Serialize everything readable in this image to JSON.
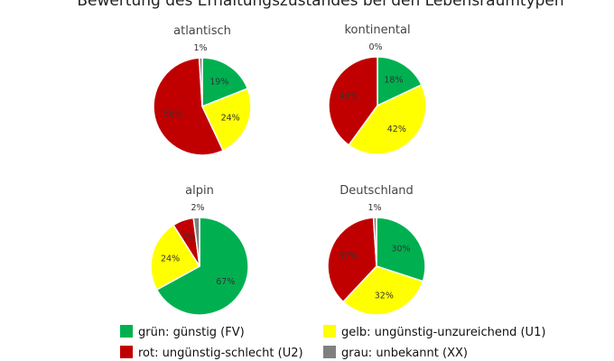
{
  "chart_data": {
    "type": "pie",
    "title": "Bewertung des Erhaltungszustandes bei den Lebensraumtypen",
    "legend": [
      {
        "label": "grün: günstig (FV)",
        "color": "#00b050"
      },
      {
        "label": "gelb: ungünstig-unzureichend (U1)",
        "color": "#ffff00"
      },
      {
        "label": "rot: ungünstig-schlecht (U2)",
        "color": "#c00000"
      },
      {
        "label": "grau: unbekannt (XX)",
        "color": "#808080"
      }
    ],
    "legend_placement": "bottom",
    "charts": [
      {
        "title": "atlantisch",
        "values": [
          19,
          24,
          56,
          1
        ],
        "labels": [
          "19%",
          "24%",
          "56%",
          "1%"
        ]
      },
      {
        "title": "kontinental",
        "values": [
          18,
          42,
          40,
          0
        ],
        "labels": [
          "18%",
          "42%",
          "40%",
          "0%"
        ]
      },
      {
        "title": "alpin",
        "values": [
          67,
          24,
          7,
          2
        ],
        "labels": [
          "67%",
          "24%",
          "7%",
          "2%"
        ]
      },
      {
        "title": "Deutschland",
        "values": [
          30,
          32,
          37,
          1
        ],
        "labels": [
          "30%",
          "32%",
          "37%",
          "1%"
        ]
      }
    ]
  }
}
